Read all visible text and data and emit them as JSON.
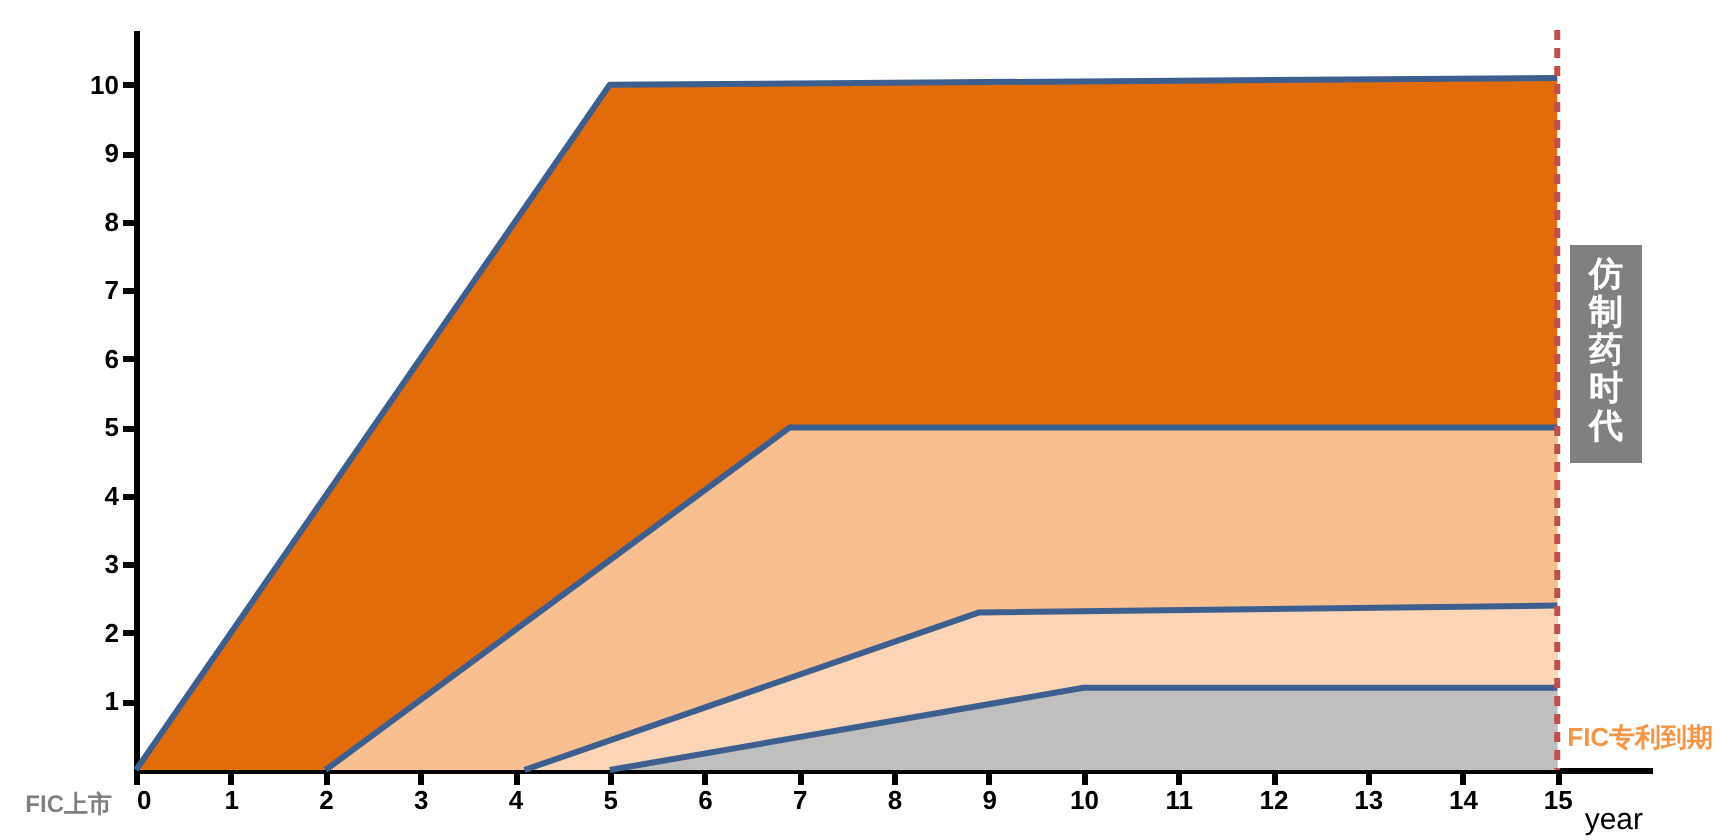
{
  "chart_data": {
    "type": "area",
    "xlabel": "year",
    "xlim": [
      0,
      16
    ],
    "ylim": [
      0,
      10.8
    ],
    "xticks": [
      0,
      1,
      2,
      3,
      4,
      5,
      6,
      7,
      8,
      9,
      10,
      11,
      12,
      13,
      14,
      15
    ],
    "yticks": [
      1,
      2,
      3,
      4,
      5,
      6,
      7,
      8,
      9,
      10
    ],
    "series": [
      {
        "color": "#e36c0a",
        "x": [
          0,
          5,
          15
        ],
        "values": [
          0,
          10,
          10.1
        ]
      },
      {
        "color": "#f8c090",
        "x": [
          2,
          6.9,
          15
        ],
        "values": [
          0,
          5,
          5
        ]
      },
      {
        "color": "#fbd5b5",
        "x": [
          4.1,
          8.9,
          15
        ],
        "values": [
          0,
          2.3,
          2.4
        ]
      },
      {
        "color": "#bfbfbf",
        "x": [
          5,
          10,
          15
        ],
        "values": [
          0,
          1.2,
          1.2
        ]
      }
    ],
    "ref_lines": [
      {
        "axis": "x",
        "value": 15,
        "label": "FIC专利到期",
        "color": "#c0504d",
        "line_style": "dashed"
      }
    ],
    "annotations": [
      {
        "text": "FIC上市",
        "x": 0,
        "y": 0
      },
      "仿制药时代"
    ],
    "grid": false
  }
}
